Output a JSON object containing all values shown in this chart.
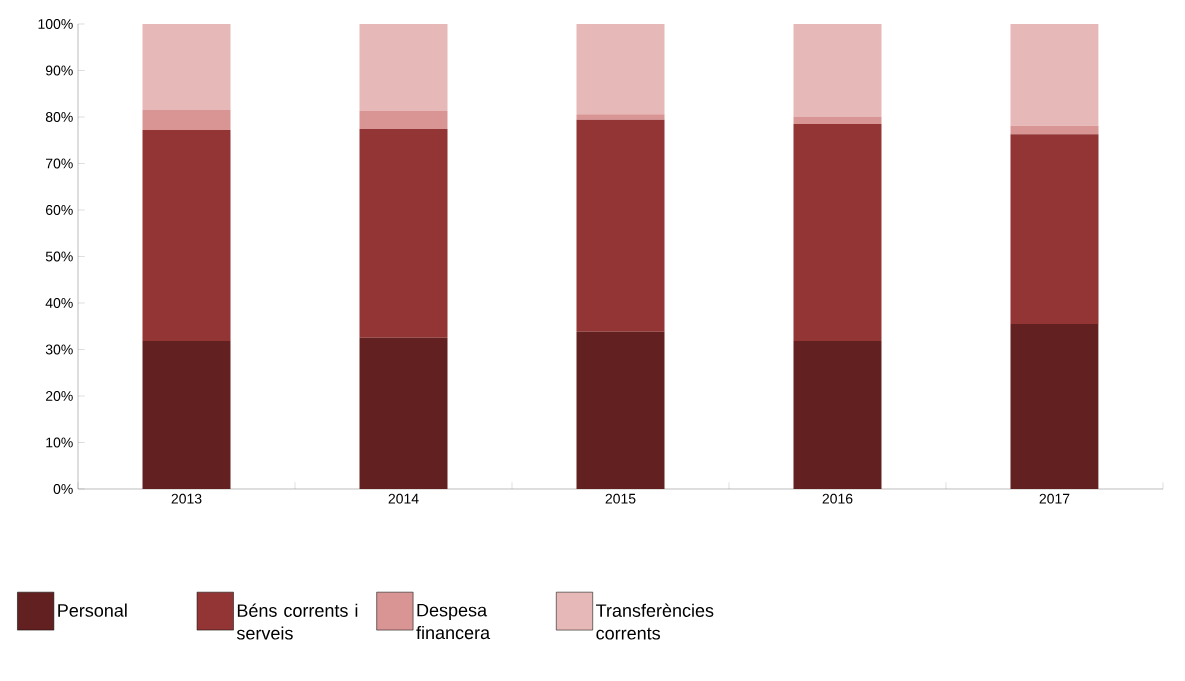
{
  "chart_data": {
    "type": "bar",
    "stacked": true,
    "categories": [
      "2013",
      "2014",
      "2015",
      "2016",
      "2017"
    ],
    "series": [
      {
        "name": "Personal",
        "color": "#632020",
        "values": [
          31.8,
          32.5,
          33.8,
          31.8,
          35.5
        ]
      },
      {
        "name": "Béns corrents i serveis",
        "color": "#943535",
        "values": [
          45.4,
          44.9,
          45.6,
          46.7,
          40.8
        ]
      },
      {
        "name": "Despesa financera",
        "color": "#d99594",
        "values": [
          4.3,
          3.9,
          1.2,
          1.5,
          1.8
        ]
      },
      {
        "name": "Transferències corrents",
        "color": "#e6b8b7",
        "values": [
          18.5,
          18.7,
          19.4,
          20.0,
          21.9
        ]
      }
    ],
    "ylim": [
      0,
      100
    ],
    "yticks": [
      {
        "value": 0,
        "label": "0%"
      },
      {
        "value": 10,
        "label": "10%"
      },
      {
        "value": 20,
        "label": "20%"
      },
      {
        "value": 30,
        "label": "30%"
      },
      {
        "value": 40,
        "label": "40%"
      },
      {
        "value": 50,
        "label": "50%"
      },
      {
        "value": 60,
        "label": "60%"
      },
      {
        "value": 70,
        "label": "70%"
      },
      {
        "value": 80,
        "label": "80%"
      },
      {
        "value": 90,
        "label": "90%"
      },
      {
        "value": 100,
        "label": "100%"
      }
    ],
    "grid": false,
    "legend": "bottom"
  }
}
